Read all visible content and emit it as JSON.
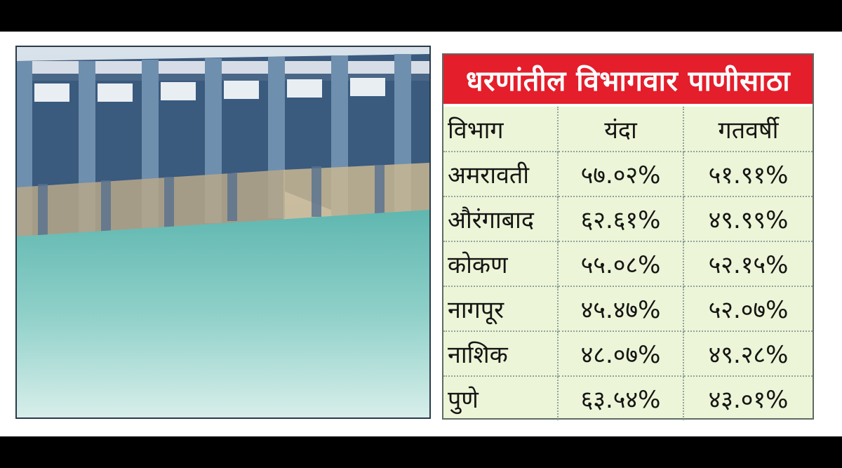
{
  "photo": {
    "alt_icon": "dam-photo"
  },
  "table": {
    "title": "धरणांतील विभागवार पाणीसाठा",
    "headers": [
      "विभाग",
      "यंदा",
      "गतवर्षी"
    ],
    "rows": [
      [
        "अमरावती",
        "५७.०२%",
        "५१.९१%"
      ],
      [
        "औरंगाबाद",
        "६२.६१%",
        "४९.९९%"
      ],
      [
        "कोकण",
        "५५.०८%",
        "५२.१५%"
      ],
      [
        "नागपूर",
        "४५.४७%",
        "५२.०७%"
      ],
      [
        "नाशिक",
        "४८.०७%",
        "४९.२८%"
      ],
      [
        "पुणे",
        "६३.५४%",
        "४३.०१%"
      ]
    ],
    "colors": {
      "title_bg": "#e41e2b",
      "body_bg": "#ecf5d7"
    }
  }
}
